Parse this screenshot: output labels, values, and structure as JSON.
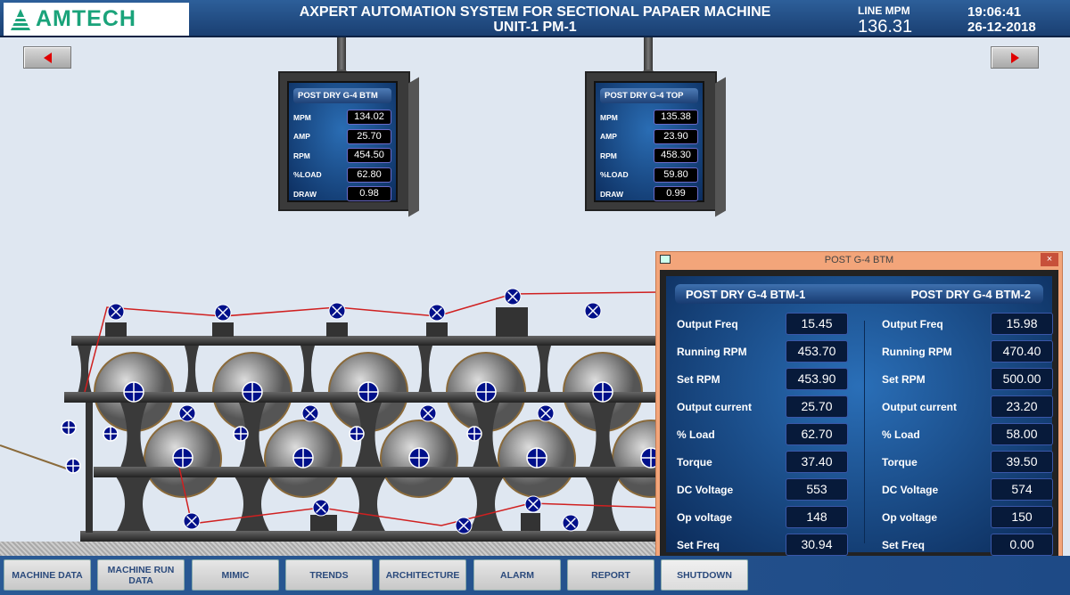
{
  "header": {
    "logo": "AMTECH",
    "title_line1": "AXPERT AUTOMATION SYSTEM FOR SECTIONAL PAPAER MACHINE",
    "title_line2": "UNIT-1 PM-1",
    "line_mpm_label": "LINE MPM",
    "line_mpm_value": "136.31",
    "time": "19:06:41",
    "date": "26-12-2018"
  },
  "nav": {
    "prev_icon": "triangle-left",
    "next_icon": "triangle-right",
    "arrow_color": "#e00000"
  },
  "panels": [
    {
      "title": "POST DRY G-4 BTM",
      "rows": [
        {
          "label": "MPM",
          "value": "134.02"
        },
        {
          "label": "AMP",
          "value": "25.70"
        },
        {
          "label": "RPM",
          "value": "454.50"
        },
        {
          "label": "%LOAD",
          "value": "62.80"
        },
        {
          "label": "DRAW",
          "value": "0.98"
        }
      ]
    },
    {
      "title": "POST DRY G-4 TOP",
      "rows": [
        {
          "label": "MPM",
          "value": "135.38"
        },
        {
          "label": "AMP",
          "value": "23.90"
        },
        {
          "label": "RPM",
          "value": "458.30"
        },
        {
          "label": "%LOAD",
          "value": "59.80"
        },
        {
          "label": "DRAW",
          "value": "0.99"
        }
      ]
    }
  ],
  "popup": {
    "title": "POST G-4 BTM",
    "close": "×",
    "drives": [
      {
        "name": "POST DRY G-4 BTM-1",
        "rows": [
          {
            "label": "Output Freq",
            "value": "15.45"
          },
          {
            "label": "Running RPM",
            "value": "453.70"
          },
          {
            "label": "Set RPM",
            "value": "453.90"
          },
          {
            "label": "Output current",
            "value": "25.70"
          },
          {
            "label": "% Load",
            "value": "62.70"
          },
          {
            "label": "Torque",
            "value": "37.40"
          },
          {
            "label": "DC Voltage",
            "value": "553"
          },
          {
            "label": "Op voltage",
            "value": "148"
          },
          {
            "label": "Set Freq",
            "value": "30.94"
          }
        ]
      },
      {
        "name": "POST DRY G-4 BTM-2",
        "rows": [
          {
            "label": "Output Freq",
            "value": "15.98"
          },
          {
            "label": "Running RPM",
            "value": "470.40"
          },
          {
            "label": "Set RPM",
            "value": "500.00"
          },
          {
            "label": "Output current",
            "value": "23.20"
          },
          {
            "label": "% Load",
            "value": "58.00"
          },
          {
            "label": "Torque",
            "value": "39.50"
          },
          {
            "label": "DC Voltage",
            "value": "574"
          },
          {
            "label": "Op voltage",
            "value": "150"
          },
          {
            "label": "Set Freq",
            "value": "0.00"
          }
        ]
      }
    ]
  },
  "menu": [
    {
      "label": "MACHINE DATA"
    },
    {
      "label": "MACHINE RUN DATA"
    },
    {
      "label": "MIMIC"
    },
    {
      "label": "TRENDS"
    },
    {
      "label": "ARCHITECTURE"
    },
    {
      "label": "ALARM"
    },
    {
      "label": "REPORT"
    },
    {
      "label": "SHUTDOWN"
    }
  ]
}
